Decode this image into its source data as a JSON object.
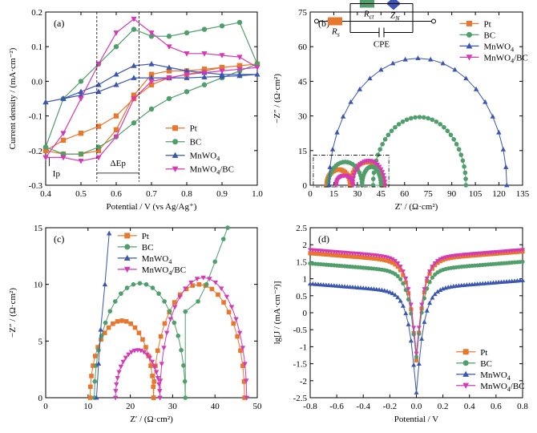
{
  "colors": {
    "Pt": "#e8772e",
    "BC": "#4f9e6b",
    "MnWO4": "#3a56b0",
    "MnWO4/BC": "#d43ab4"
  },
  "chart_data": [
    {
      "panel": "(a)",
      "type": "line",
      "xlabel": "Potential / V (vs Ag/Ag⁺)",
      "ylabel": "Current density / (mA·cm⁻²)",
      "xlim": [
        0.4,
        1.0
      ],
      "ylim": [
        -0.3,
        0.2
      ],
      "xticks": [
        "0.4",
        "0.5",
        "0.6",
        "0.7",
        "0.8",
        "0.9",
        "1.0"
      ],
      "yticks": [
        "-0.3",
        "-0.2",
        "-0.1",
        "0.0",
        "0.1",
        "0.2"
      ],
      "legend_position": "lower-right",
      "annotations": [
        "ΔEp",
        "Ip"
      ],
      "series": [
        {
          "name": "Pt",
          "color": "#e8772e",
          "marker": "square",
          "x": [
            0.4,
            0.45,
            0.5,
            0.55,
            0.6,
            0.65,
            0.7,
            0.75,
            0.8,
            0.85,
            0.9,
            0.95,
            1.0,
            0.95,
            0.9,
            0.85,
            0.8,
            0.75,
            0.7,
            0.65,
            0.6,
            0.55,
            0.5,
            0.45,
            0.4
          ],
          "y": [
            -0.2,
            -0.21,
            -0.21,
            -0.2,
            -0.14,
            -0.04,
            0.02,
            0.03,
            0.03,
            0.035,
            0.04,
            0.045,
            0.05,
            0.045,
            0.04,
            0.03,
            0.02,
            0.01,
            -0.01,
            -0.05,
            -0.1,
            -0.13,
            -0.15,
            -0.17,
            -0.2
          ]
        },
        {
          "name": "BC",
          "color": "#4f9e6b",
          "marker": "circle",
          "x": [
            0.4,
            0.45,
            0.5,
            0.55,
            0.6,
            0.65,
            0.7,
            0.75,
            0.8,
            0.85,
            0.9,
            0.95,
            1.0,
            0.95,
            0.9,
            0.85,
            0.8,
            0.75,
            0.7,
            0.65,
            0.6,
            0.55,
            0.5,
            0.45,
            0.4
          ],
          "y": [
            -0.19,
            -0.21,
            -0.21,
            -0.19,
            -0.16,
            -0.12,
            -0.08,
            -0.05,
            -0.03,
            -0.01,
            0.01,
            0.03,
            0.05,
            0.17,
            0.16,
            0.15,
            0.14,
            0.13,
            0.13,
            0.15,
            0.1,
            0.05,
            0.0,
            -0.05,
            -0.19
          ]
        },
        {
          "name": "MnWO4",
          "color": "#3a56b0",
          "marker": "triangle",
          "x": [
            0.4,
            0.45,
            0.5,
            0.55,
            0.6,
            0.65,
            0.7,
            0.75,
            0.8,
            0.85,
            0.9,
            0.95,
            1.0,
            0.95,
            0.9,
            0.85,
            0.8,
            0.75,
            0.7,
            0.65,
            0.6,
            0.55,
            0.5,
            0.45,
            0.4
          ],
          "y": [
            -0.06,
            -0.05,
            -0.04,
            -0.03,
            -0.01,
            0.01,
            0.01,
            0.01,
            0.01,
            0.012,
            0.014,
            0.016,
            0.02,
            0.02,
            0.02,
            0.025,
            0.03,
            0.04,
            0.05,
            0.045,
            0.02,
            -0.01,
            -0.03,
            -0.05,
            -0.06
          ]
        },
        {
          "name": "MnWO4/BC",
          "color": "#d43ab4",
          "marker": "down-triangle",
          "x": [
            0.4,
            0.45,
            0.5,
            0.55,
            0.6,
            0.65,
            0.7,
            0.75,
            0.8,
            0.85,
            0.9,
            0.95,
            1.0,
            0.95,
            0.9,
            0.85,
            0.8,
            0.75,
            0.7,
            0.65,
            0.6,
            0.55,
            0.5,
            0.45,
            0.4
          ],
          "y": [
            -0.22,
            -0.22,
            -0.23,
            -0.22,
            -0.16,
            -0.05,
            0.0,
            0.01,
            0.02,
            0.025,
            0.03,
            0.035,
            0.04,
            0.07,
            0.075,
            0.08,
            0.08,
            0.1,
            0.14,
            0.18,
            0.14,
            0.05,
            -0.05,
            -0.15,
            -0.22
          ]
        }
      ]
    },
    {
      "panel": "(b)",
      "type": "scatter",
      "xlabel": "Z′ / (Ω·cm²)",
      "ylabel": "−Z″ / (Ω·cm²)",
      "xlim": [
        0,
        135
      ],
      "ylim": [
        0,
        75
      ],
      "xticks": [
        "0",
        "15",
        "30",
        "45",
        "60",
        "75",
        "90",
        "105",
        "120",
        "135"
      ],
      "yticks": [
        "0",
        "15",
        "30",
        "45",
        "60",
        "75"
      ],
      "legend_position": "top-right",
      "circuit_labels": {
        "rs": "R",
        "rs_sub": "s",
        "rct": "R",
        "rct_sub": "ct",
        "zn": "Z",
        "zn_sub": "N",
        "cpe": "CPE"
      },
      "series": [
        {
          "name": "Pt",
          "color": "#e8772e",
          "marker": "square",
          "arcs": [
            [
              10.5,
              25.5,
              6.8
            ],
            [
              25.5,
              47,
              10.0
            ]
          ]
        },
        {
          "name": "BC",
          "color": "#4f9e6b",
          "marker": "circle",
          "arcs": [
            [
              11.5,
              33,
              10.1
            ],
            [
              33,
              45,
              8.0
            ]
          ],
          "arc_extra": [
            [
              40,
              99,
              29.5
            ]
          ]
        },
        {
          "name": "MnWO4",
          "color": "#3a56b0",
          "marker": "triangle",
          "arcs": [
            [
              12,
              125,
              55.0
            ]
          ]
        },
        {
          "name": "MnWO4/BC",
          "color": "#d43ab4",
          "marker": "down-triangle",
          "arcs": [
            [
              16.5,
              27,
              4.2
            ],
            [
              27,
              47.5,
              10.6
            ]
          ]
        }
      ]
    },
    {
      "panel": "(c)",
      "type": "scatter",
      "xlabel": "Z′ / (Ω·cm²)",
      "ylabel": "−Z″ / (Ω·cm²)",
      "xlim": [
        0,
        50
      ],
      "ylim": [
        0,
        15
      ],
      "xticks": [
        "0",
        "10",
        "20",
        "30",
        "40",
        "50"
      ],
      "yticks": [
        "0",
        "5",
        "10",
        "15"
      ],
      "legend_position": "top-left",
      "series": [
        {
          "name": "Pt",
          "color": "#e8772e",
          "marker": "square",
          "arcs": [
            [
              10.5,
              25.5,
              6.8
            ],
            [
              25.5,
              47,
              10.0
            ]
          ]
        },
        {
          "name": "BC",
          "color": "#4f9e6b",
          "marker": "circle",
          "arcs": [
            [
              11.5,
              33,
              10.1
            ]
          ],
          "tail": [
            [
              33,
              7.6
            ],
            [
              36,
              8.5
            ],
            [
              38,
              10
            ],
            [
              40,
              12
            ],
            [
              42,
              14
            ],
            [
              43,
              15
            ]
          ]
        },
        {
          "name": "MnWO4",
          "color": "#3a56b0",
          "marker": "triangle",
          "tail": [
            [
              12,
              0
            ],
            [
              12.5,
              3
            ],
            [
              13,
              6
            ],
            [
              14,
              10
            ],
            [
              15,
              14.5
            ]
          ]
        },
        {
          "name": "MnWO4/BC",
          "color": "#d43ab4",
          "marker": "down-triangle",
          "arcs": [
            [
              16.5,
              27,
              4.2
            ],
            [
              27,
              47.5,
              10.6
            ]
          ]
        }
      ]
    },
    {
      "panel": "(d)",
      "type": "line",
      "xlabel": "Potential / V",
      "ylabel": "lg[J / (mA·cm⁻²)]",
      "xlim": [
        -0.8,
        0.8
      ],
      "ylim": [
        -2.5,
        2.5
      ],
      "xticks": [
        "-0.8",
        "-0.6",
        "-0.4",
        "-0.2",
        "0.0",
        "0.2",
        "0.4",
        "0.6",
        "0.8"
      ],
      "yticks": [
        "-2.5",
        "-2",
        "-1.5",
        "-1",
        "-0.5",
        "0",
        "0.5",
        "1",
        "1.5",
        "2",
        "2.5"
      ],
      "legend_position": "lower-right",
      "series": [
        {
          "name": "Pt",
          "color": "#e8772e",
          "marker": "square",
          "left": 1.75,
          "right": 1.8,
          "min": -1.4
        },
        {
          "name": "BC",
          "color": "#4f9e6b",
          "marker": "circle",
          "left": 1.45,
          "right": 1.5,
          "min": -1.3
        },
        {
          "name": "MnWO4",
          "color": "#3a56b0",
          "marker": "triangle",
          "left": 0.85,
          "right": 0.95,
          "min": -2.35
        },
        {
          "name": "MnWO4/BC",
          "color": "#d43ab4",
          "marker": "down-triangle",
          "left": 1.85,
          "right": 1.85,
          "min": -1.2
        }
      ]
    }
  ],
  "legend": {
    "labels": [
      {
        "text": "Pt",
        "sub": "",
        "tail": ""
      },
      {
        "text": "BC",
        "sub": "",
        "tail": ""
      },
      {
        "text": "MnWO",
        "sub": "4",
        "tail": ""
      },
      {
        "text": "MnWO",
        "sub": "4",
        "tail": "/BC"
      }
    ]
  }
}
